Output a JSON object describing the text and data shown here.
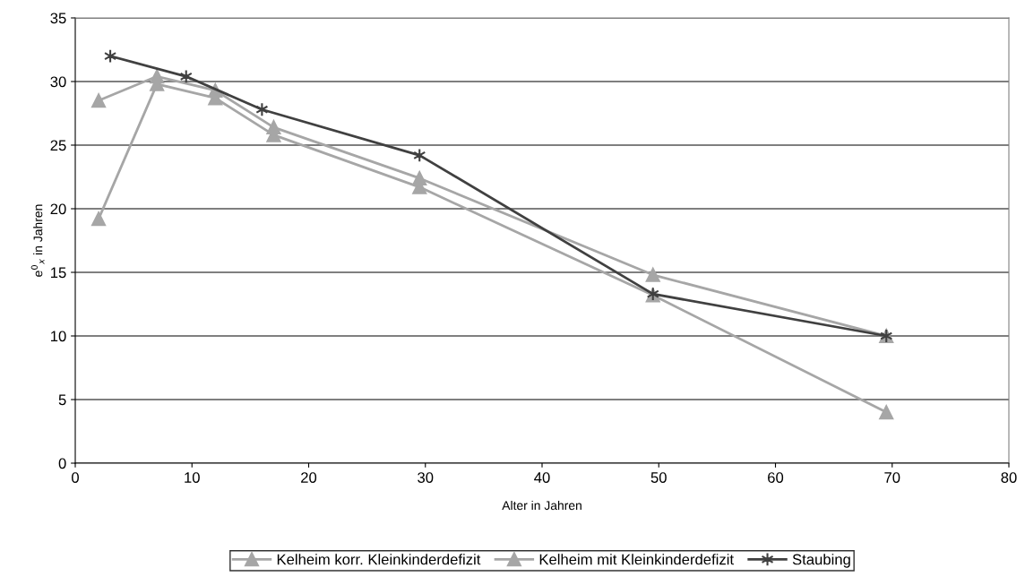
{
  "chart_data": {
    "type": "line",
    "xlabel": "Alter in Jahren",
    "ylabel": "e$^{0}$$_{x}$ in Jahren",
    "xlim": [
      0,
      80
    ],
    "xticks": [
      0,
      10,
      20,
      30,
      40,
      50,
      60,
      70,
      80
    ],
    "ylim": [
      0,
      35
    ],
    "yticks": [
      0,
      5,
      10,
      15,
      20,
      25,
      30,
      35
    ],
    "grid": "y",
    "legend": "bottom",
    "series": [
      {
        "name": "Kelheim korr. Kleinkinderdefizit",
        "color": "#a6a6a6",
        "marker": "triangle",
        "x": [
          2,
          7,
          12,
          17,
          29.5,
          49.5,
          69.5
        ],
        "values": [
          19.2,
          29.8,
          28.7,
          25.8,
          21.7,
          13.2,
          4.0
        ]
      },
      {
        "name": "Kelheim mit Kleinkinderdefizit",
        "color": "#a6a6a6",
        "marker": "triangle",
        "x": [
          2,
          7,
          12,
          17,
          29.5,
          49.5,
          69.5
        ],
        "values": [
          28.5,
          30.4,
          29.3,
          26.4,
          22.4,
          14.8,
          10.0
        ]
      },
      {
        "name": "Staubing",
        "color": "#404040",
        "marker": "cross",
        "x": [
          3,
          9.5,
          16,
          29.5,
          49.5,
          69.5
        ],
        "values": [
          32.0,
          30.4,
          27.8,
          24.2,
          13.3,
          10.0
        ]
      }
    ]
  }
}
